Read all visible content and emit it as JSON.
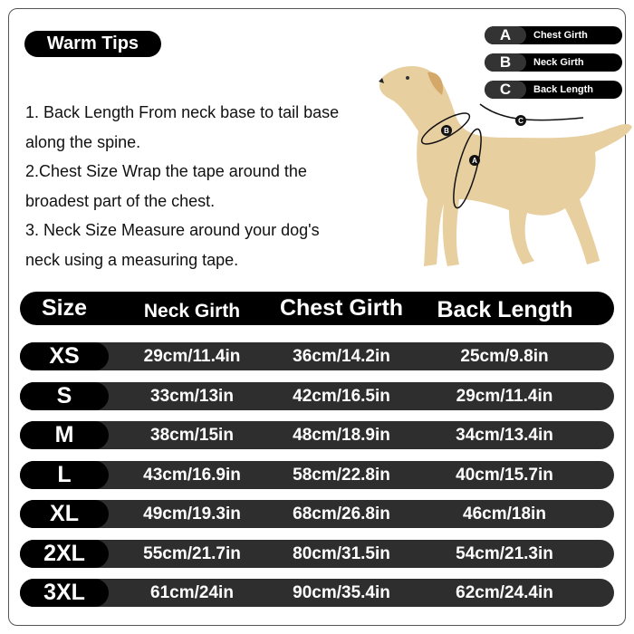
{
  "warm_tips": {
    "title": "Warm Tips",
    "lines": [
      "1. Back Length From neck base to tail base",
      "along the spine.",
      "2.Chest Size Wrap the tape around the",
      "broadest part of the chest.",
      "3. Neck Size Measure around your dog's",
      "neck using a measuring tape."
    ]
  },
  "legend": [
    {
      "key": "A",
      "label": "Chest Girth"
    },
    {
      "key": "B",
      "label": "Neck Girth"
    },
    {
      "key": "C",
      "label": "Back Length"
    }
  ],
  "colors": {
    "dog": "#e8cfa0",
    "bar": "#2e2e2e",
    "pill": "#000000"
  },
  "table": {
    "headers": [
      "Size",
      "Neck Girth",
      "Chest Girth",
      "Back Length"
    ],
    "rows": [
      [
        "XS",
        "29cm/11.4in",
        "36cm/14.2in",
        "25cm/9.8in"
      ],
      [
        "S",
        "33cm/13in",
        "42cm/16.5in",
        "29cm/11.4in"
      ],
      [
        "M",
        "38cm/15in",
        "48cm/18.9in",
        "34cm/13.4in"
      ],
      [
        "L",
        "43cm/16.9in",
        "58cm/22.8in",
        "40cm/15.7in"
      ],
      [
        "XL",
        "49cm/19.3in",
        "68cm/26.8in",
        "46cm/18in"
      ],
      [
        "2XL",
        "55cm/21.7in",
        "80cm/31.5in",
        "54cm/21.3in"
      ],
      [
        "3XL",
        "61cm/24in",
        "90cm/35.4in",
        "62cm/24.4in"
      ]
    ]
  }
}
